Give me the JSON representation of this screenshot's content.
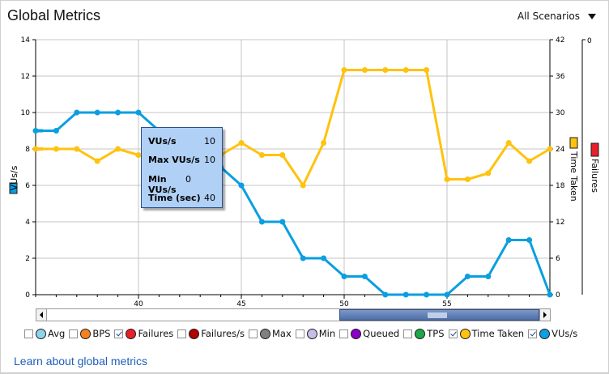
{
  "header": {
    "title": "Global Metrics",
    "scenario_select": "All Scenarios"
  },
  "axes": {
    "left_label": "VUs/s",
    "left_label_color": "#0a9fe0",
    "right_label_1": "Time Taken",
    "right_label_1_color": "#ffc20e",
    "right_label_2": "Failures",
    "right_label_2_color": "#e8202a",
    "right2_top_tick": "0"
  },
  "tooltip": {
    "rows": [
      {
        "key": "VUs/s",
        "value": "10"
      },
      {
        "key": "Max VUs/s",
        "value": "10"
      },
      {
        "key": "Min VUs/s",
        "value": "0"
      },
      {
        "key": "Time (sec)",
        "value": "40"
      }
    ]
  },
  "legend": [
    {
      "label": "Avg",
      "checked": false,
      "color": "#8fd3ea"
    },
    {
      "label": "BPS",
      "checked": false,
      "color": "#f58220"
    },
    {
      "label": "Failures",
      "checked": true,
      "color": "#e8202a"
    },
    {
      "label": "Failures/s",
      "checked": false,
      "color": "#b00000"
    },
    {
      "label": "Max",
      "checked": false,
      "color": "#808080"
    },
    {
      "label": "Min",
      "checked": false,
      "color": "#c8bde6"
    },
    {
      "label": "Queued",
      "checked": false,
      "color": "#8a00c8"
    },
    {
      "label": "TPS",
      "checked": false,
      "color": "#1fa84a"
    },
    {
      "label": "Time Taken",
      "checked": true,
      "color": "#ffc20e"
    },
    {
      "label": "VUs/s",
      "checked": true,
      "color": "#0a9fe0"
    }
  ],
  "footer": {
    "link": "Learn about global metrics"
  },
  "chart_data": {
    "type": "line",
    "title": "Global Metrics",
    "xlabel": "Time (sec)",
    "ylabel": "VUs/s",
    "x": [
      35,
      36,
      37,
      38,
      39,
      40,
      41,
      42,
      43,
      44,
      45,
      46,
      47,
      48,
      49,
      50,
      51,
      52,
      53,
      54,
      55,
      56,
      57,
      58,
      59,
      60
    ],
    "xlim": [
      35,
      60
    ],
    "x_ticks": [
      40,
      45,
      50,
      55
    ],
    "ylim": [
      0,
      14
    ],
    "y_ticks": [
      0,
      2,
      4,
      6,
      8,
      10,
      12,
      14
    ],
    "y2_label": "Time Taken",
    "y2lim": [
      0,
      42
    ],
    "y2_ticks": [
      0,
      6,
      12,
      18,
      24,
      30,
      36,
      42
    ],
    "y3_label": "Failures",
    "y3_ticks": [
      0
    ],
    "grid": true,
    "legend_position": "bottom",
    "series": [
      {
        "name": "VUs/s",
        "axis": "left",
        "color": "#0a9fe0",
        "values": [
          9,
          9,
          10,
          10,
          10,
          10,
          9,
          8,
          7.5,
          7,
          6,
          4,
          4,
          2,
          2,
          1,
          1,
          0,
          0,
          0,
          0,
          1,
          1,
          3,
          3,
          0
        ]
      },
      {
        "name": "Time Taken",
        "axis": "right",
        "color": "#ffc20e",
        "values": [
          24,
          24,
          24,
          22,
          24,
          23,
          22,
          22,
          23,
          23,
          25,
          23,
          23,
          18,
          25,
          37,
          37,
          37,
          37,
          37,
          19,
          19,
          20,
          25,
          22,
          24
        ]
      },
      {
        "name": "Failures",
        "axis": "right2",
        "color": "#e8202a",
        "values": []
      }
    ]
  }
}
